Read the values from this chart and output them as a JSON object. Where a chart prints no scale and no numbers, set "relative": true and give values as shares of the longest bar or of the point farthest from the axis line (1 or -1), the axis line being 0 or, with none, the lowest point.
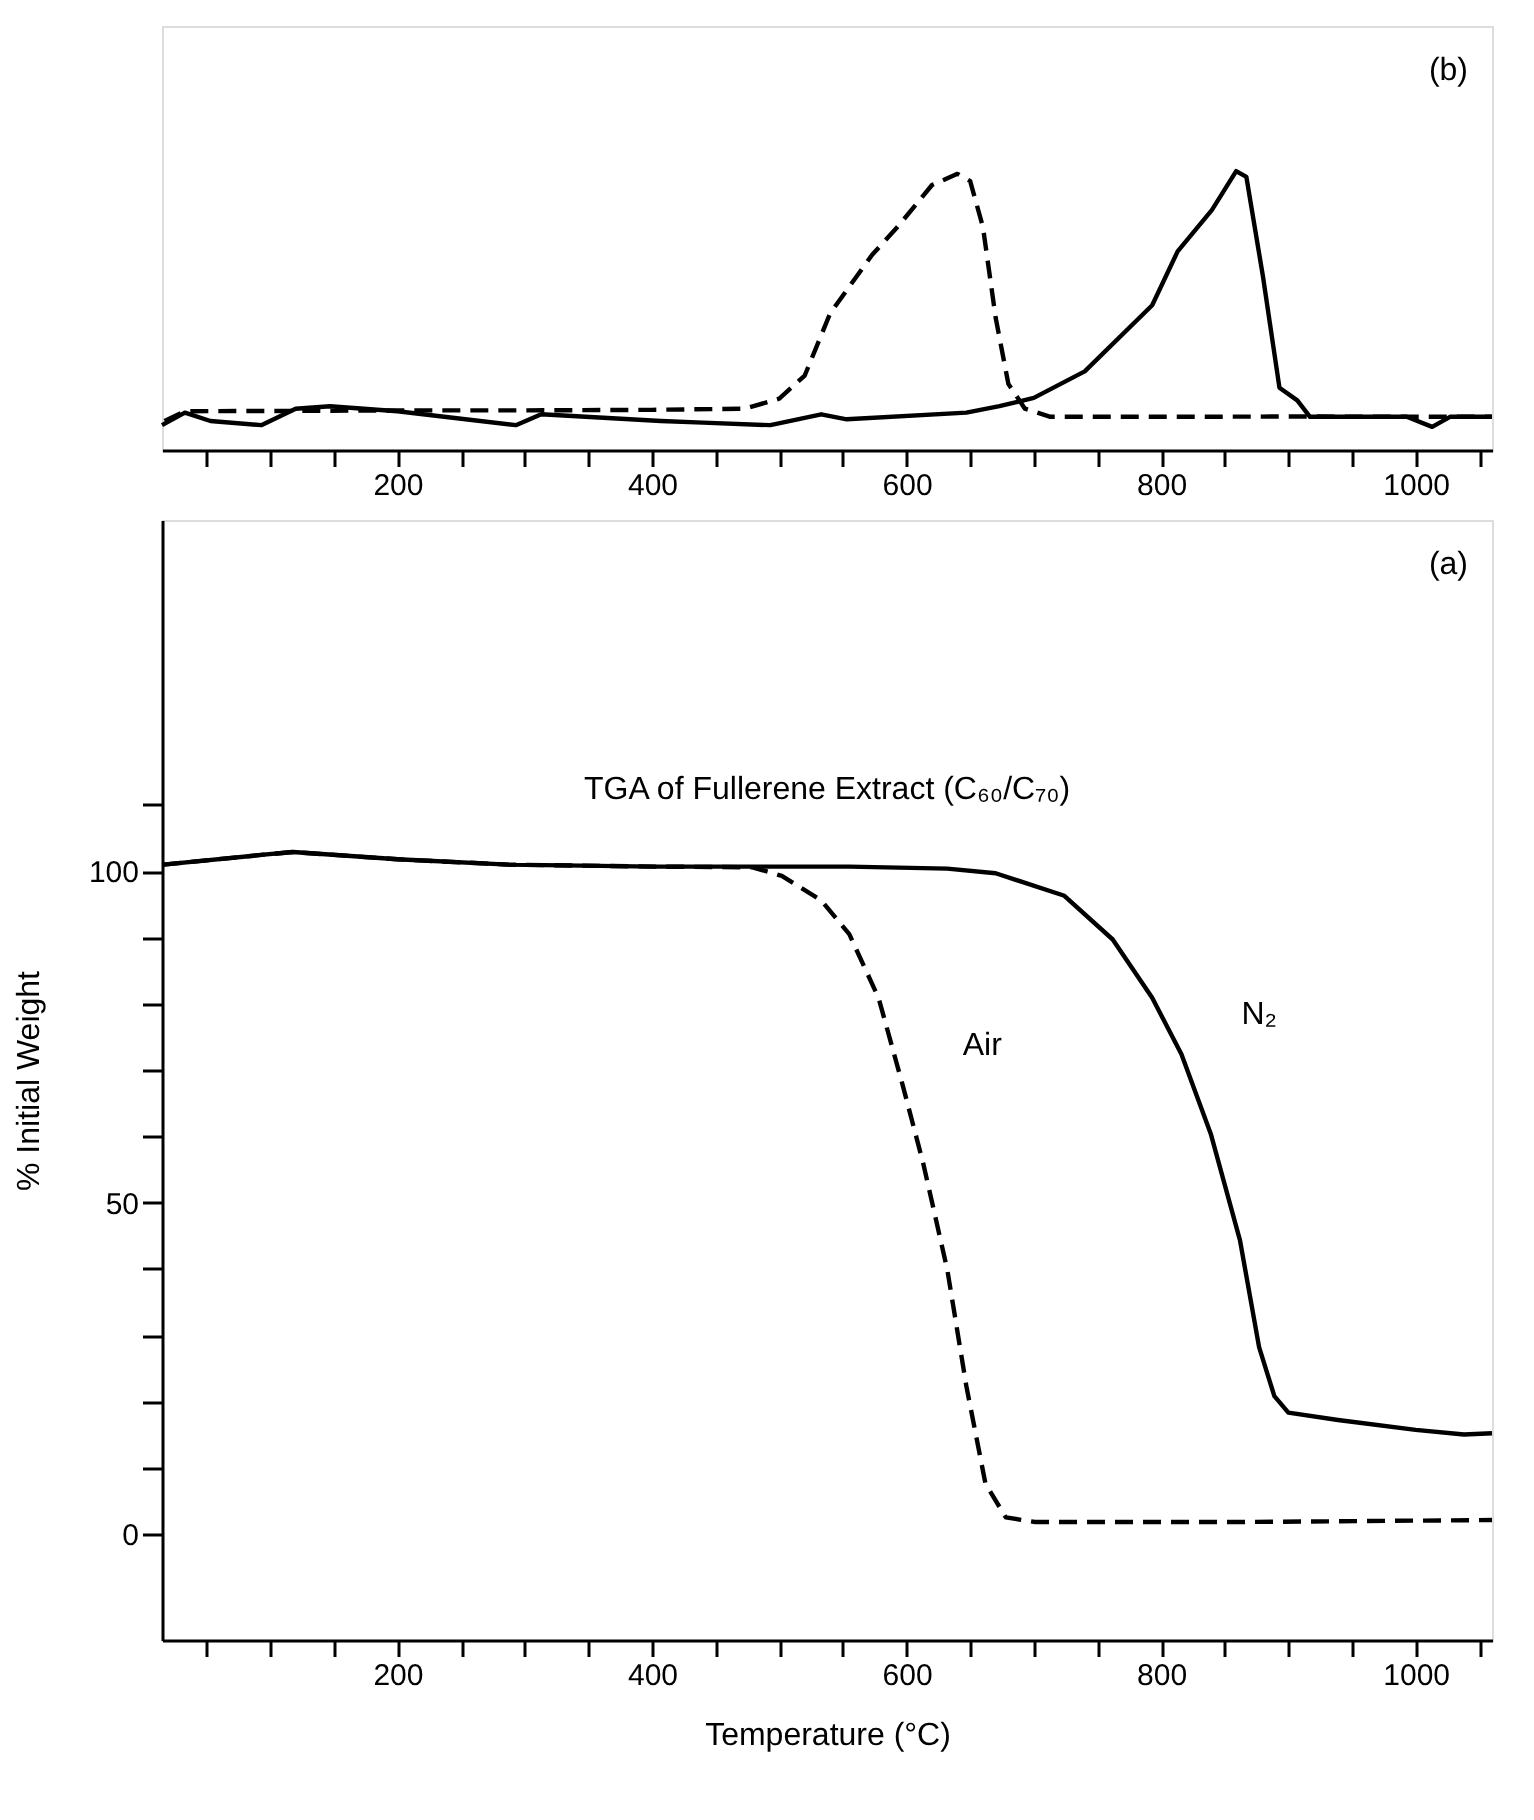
{
  "chart_data": [
    {
      "type": "line",
      "relative": true,
      "xlim": [
        15,
        1060
      ],
      "xticks": [
        {
          "value": 50,
          "label": null
        },
        {
          "value": 100,
          "label": null
        },
        {
          "value": 150,
          "label": null
        },
        200,
        {
          "value": 250,
          "label": null
        },
        {
          "value": 300,
          "label": null
        },
        {
          "value": 350,
          "label": null
        },
        400,
        {
          "value": 450,
          "label": null
        },
        {
          "value": 500,
          "label": null
        },
        {
          "value": 550,
          "label": null
        },
        600,
        {
          "value": 650,
          "label": null
        },
        {
          "value": 700,
          "label": null
        },
        {
          "value": 750,
          "label": null
        },
        800,
        {
          "value": 850,
          "label": null
        },
        {
          "value": 900,
          "label": null
        },
        {
          "value": 950,
          "label": null
        },
        1000,
        {
          "value": 1050,
          "label": null
        }
      ],
      "tick_labels": "x",
      "grid": false,
      "marker": "none",
      "annotations": [
        "(b)"
      ],
      "series": [
        {
          "color": "#000000",
          "line_style": "dashed",
          "x": [
            17,
            33,
            100,
            200,
            300,
            400,
            473,
            500,
            520,
            540,
            573,
            593,
            620,
            640,
            650,
            660,
            670,
            680,
            693,
            713,
            807,
            900,
            1060
          ],
          "values": [
            0.104,
            0.139,
            0.14,
            0.142,
            0.142,
            0.144,
            0.148,
            0.184,
            0.267,
            0.49,
            0.7,
            0.8,
            0.95,
            0.99,
            0.964,
            0.8,
            0.475,
            0.237,
            0.148,
            0.119,
            0.119,
            0.12,
            0.119
          ]
        },
        {
          "color": "#000000",
          "line_style": "solid",
          "x": [
            15,
            33,
            53,
            93,
            120,
            147,
            200,
            293,
            313,
            407,
            440,
            493,
            533,
            553,
            647,
            673,
            700,
            740,
            793,
            813,
            840,
            859,
            867,
            880,
            893,
            907,
            917,
            993,
            1013,
            1027,
            1060
          ],
          "values": [
            0.089,
            0.134,
            0.104,
            0.089,
            0.148,
            0.157,
            0.139,
            0.089,
            0.128,
            0.104,
            0.098,
            0.089,
            0.128,
            0.11,
            0.134,
            0.157,
            0.187,
            0.282,
            0.519,
            0.712,
            0.861,
            1.0,
            0.979,
            0.623,
            0.223,
            0.178,
            0.119,
            0.119,
            0.083,
            0.119,
            0.119
          ]
        }
      ]
    },
    {
      "type": "line",
      "title": "TGA of Fullerene Extract (C₆₀/C₇₀)",
      "xlabel": "Temperature (°C)",
      "ylabel": "% Initial Weight",
      "xlim": [
        15,
        1060
      ],
      "ylim": [
        -16,
        153
      ],
      "xticks": [
        {
          "value": 50,
          "label": null
        },
        {
          "value": 100,
          "label": null
        },
        {
          "value": 150,
          "label": null
        },
        200,
        {
          "value": 250,
          "label": null
        },
        {
          "value": 300,
          "label": null
        },
        {
          "value": 350,
          "label": null
        },
        400,
        {
          "value": 450,
          "label": null
        },
        {
          "value": 500,
          "label": null
        },
        {
          "value": 550,
          "label": null
        },
        600,
        {
          "value": 650,
          "label": null
        },
        {
          "value": 700,
          "label": null
        },
        {
          "value": 750,
          "label": null
        },
        800,
        {
          "value": 850,
          "label": null
        },
        {
          "value": 900,
          "label": null
        },
        {
          "value": 950,
          "label": null
        },
        1000,
        {
          "value": 1050,
          "label": null
        }
      ],
      "yticks": [
        0,
        {
          "value": 10,
          "label": null
        },
        {
          "value": 20,
          "label": null
        },
        {
          "value": 30,
          "label": null
        },
        {
          "value": 40,
          "label": null
        },
        50,
        {
          "value": 60,
          "label": null
        },
        {
          "value": 70,
          "label": null
        },
        {
          "value": 80,
          "label": null
        },
        {
          "value": 90,
          "label": null
        },
        100,
        {
          "value": 110,
          "label": null
        }
      ],
      "grid": false,
      "marker": "none",
      "annotations": [
        {
          "text": "Air",
          "x": 597,
          "y": 67.7
        },
        {
          "text": "N₂",
          "x": 816,
          "y": 72.4
        },
        "(a)"
      ],
      "series": [
        {
          "color": "#000000",
          "line_style": "dashed",
          "x": [
            16,
            95,
            118,
            200,
            287,
            402,
            479,
            502,
            533,
            555,
            578,
            597,
            613,
            632,
            647,
            662,
            678,
            701,
            862,
            1060
          ],
          "values": [
            101.0,
            102.5,
            102.9,
            101.8,
            101.0,
            100.7,
            100.6,
            99.3,
            95.6,
            90.5,
            80.9,
            67.7,
            56.0,
            39.9,
            22.3,
            7.6,
            2.5,
            1.8,
            1.8,
            2.1
          ]
        },
        {
          "color": "#000000",
          "line_style": "solid",
          "x": [
            16,
            95,
            118,
            200,
            287,
            402,
            555,
            632,
            670,
            724,
            762,
            793,
            816,
            839,
            862,
            877,
            889,
            900,
            939,
            1000,
            1038,
            1060
          ],
          "values": [
            101.0,
            102.5,
            102.9,
            101.8,
            101.0,
            100.7,
            100.7,
            100.4,
            99.7,
            96.3,
            89.7,
            80.9,
            72.4,
            60.4,
            44.3,
            28.2,
            20.8,
            18.3,
            17.2,
            15.7,
            15.0,
            15.2
          ]
        }
      ]
    }
  ]
}
